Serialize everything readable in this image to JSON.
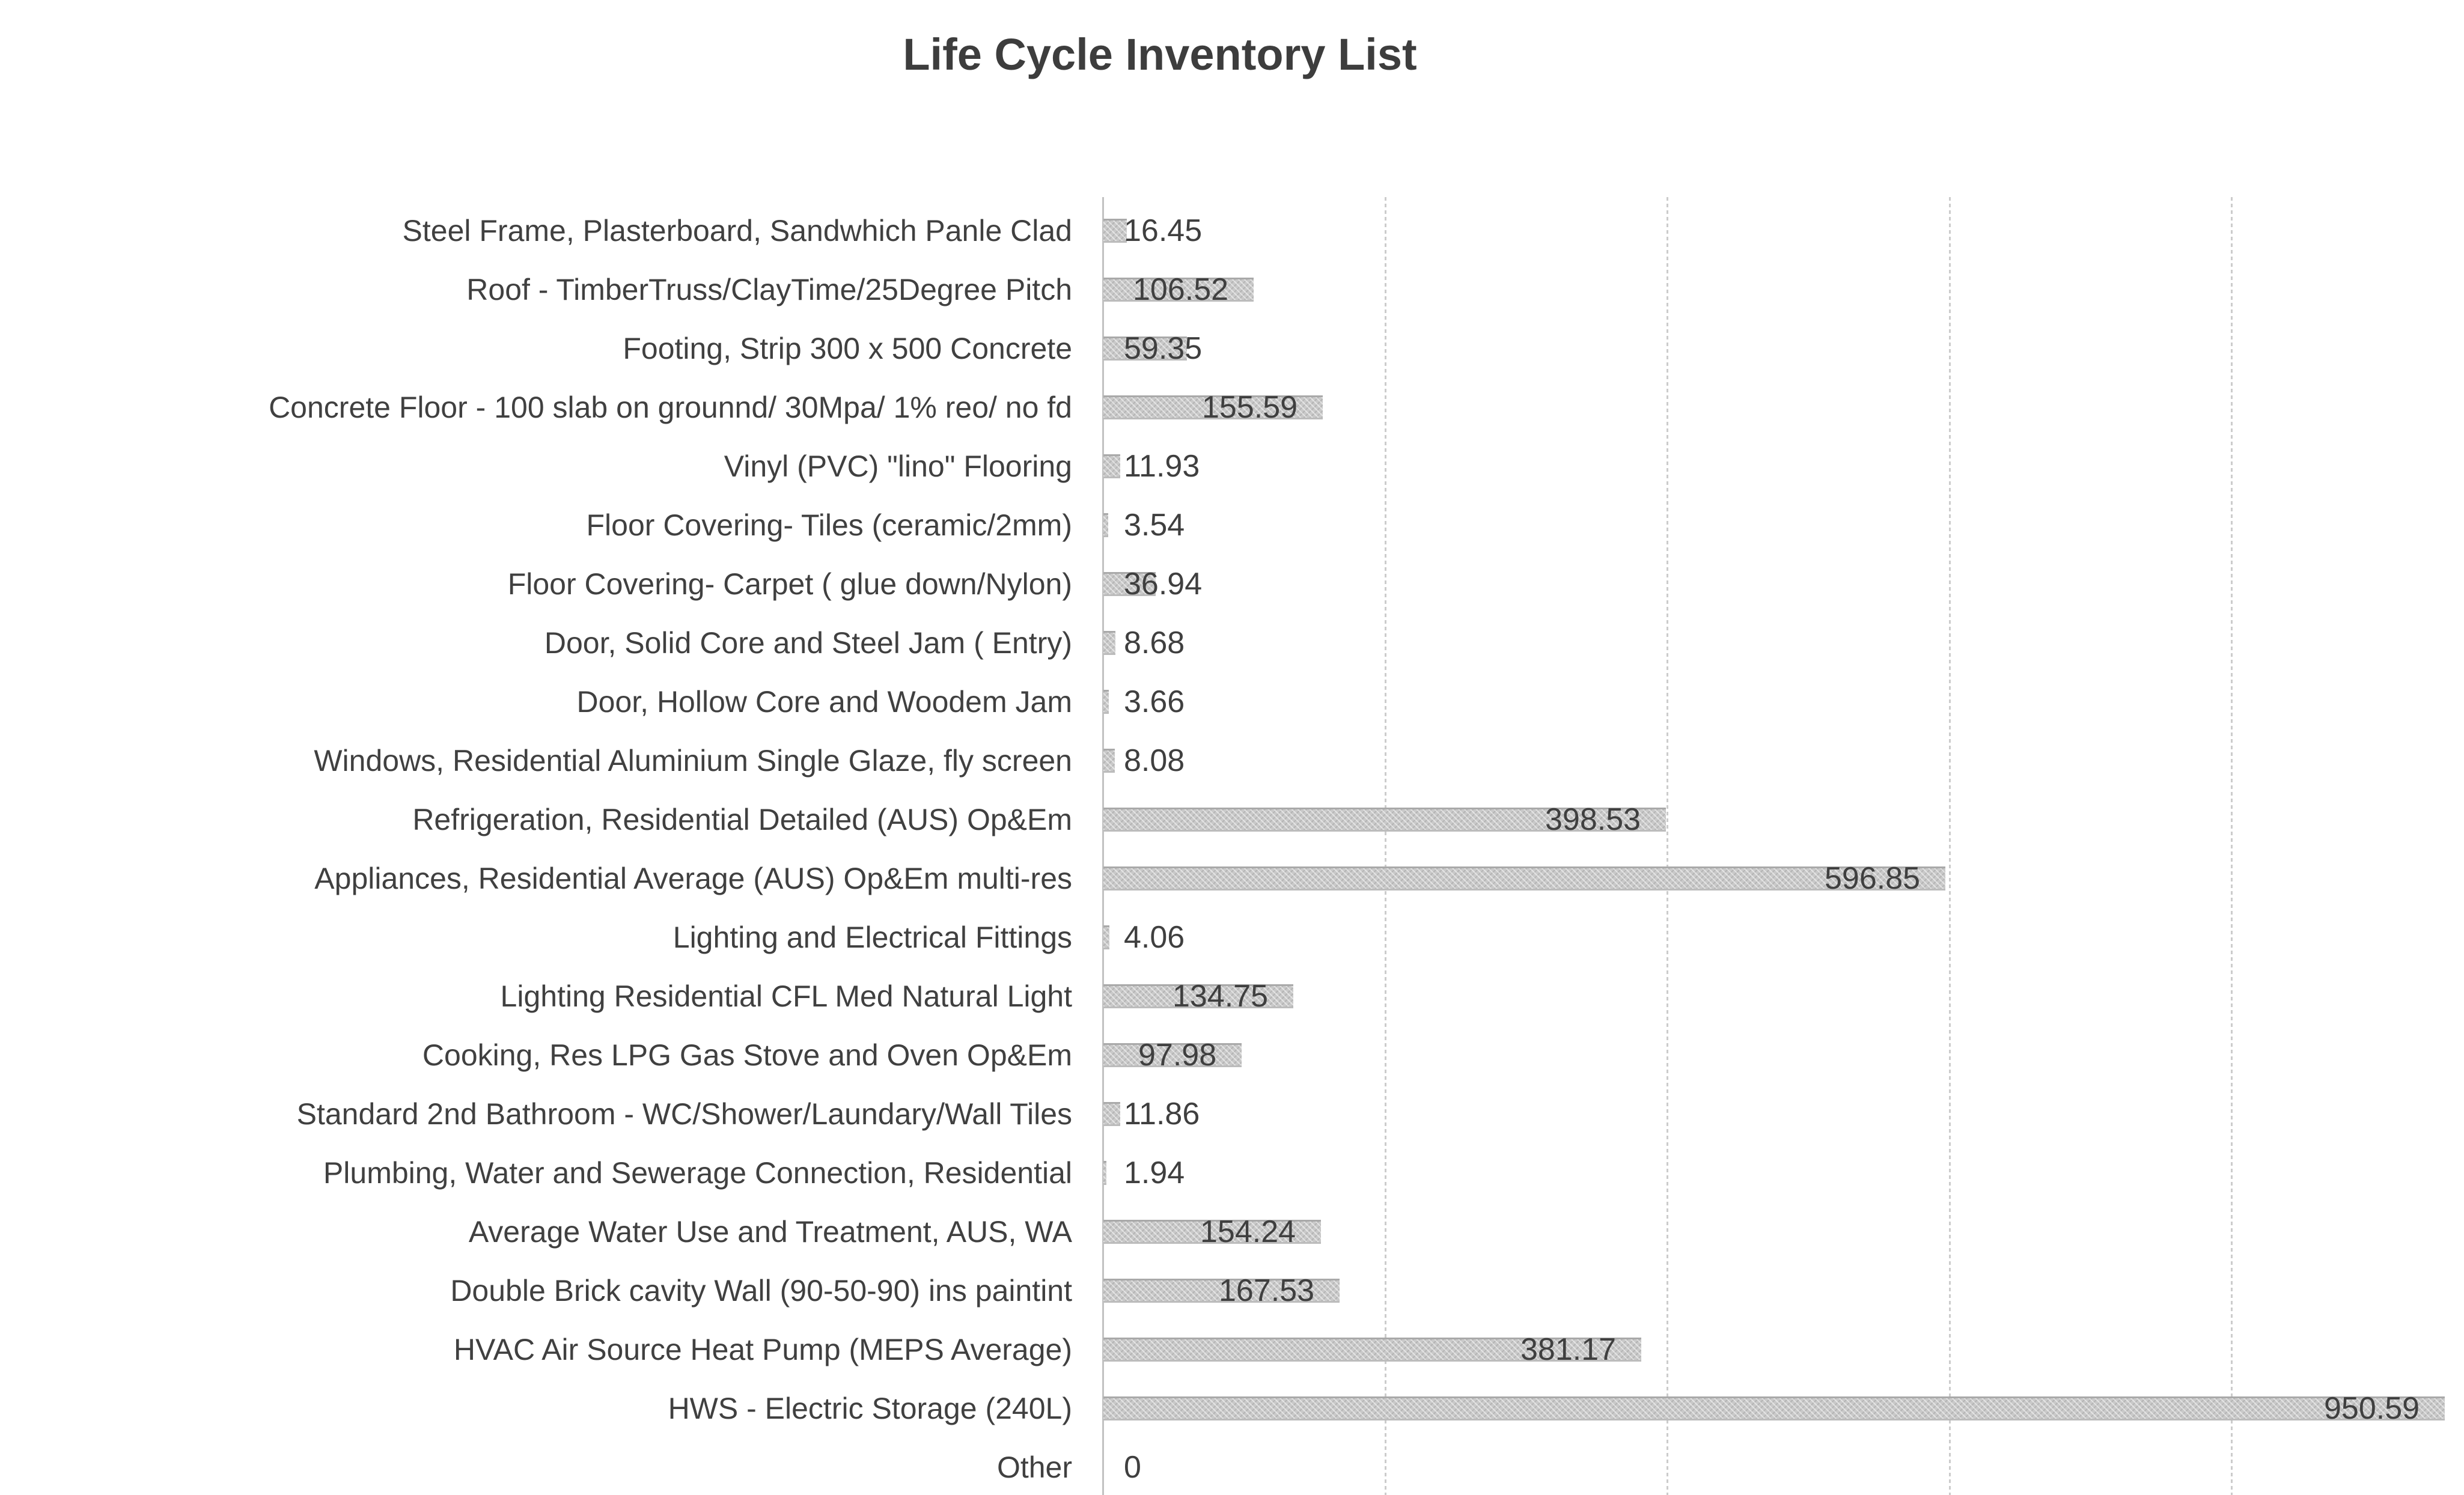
{
  "chart_data": {
    "type": "bar",
    "orientation": "horizontal",
    "title": "Life Cycle Inventory List",
    "categories": [
      "Steel Frame, Plasterboard, Sandwhich Panle Clad",
      "Roof - TimberTruss/ClayTime/25Degree Pitch",
      "Footing, Strip 300 x 500 Concrete",
      "Concrete Floor - 100 slab on grounnd/ 30Mpa/ 1% reo/ no fd",
      "Vinyl (PVC) \"lino\" Flooring",
      "Floor Covering- Tiles (ceramic/2mm)",
      "Floor Covering- Carpet ( glue down/Nylon)",
      "Door, Solid Core and Steel Jam ( Entry)",
      "Door, Hollow Core and Woodem Jam",
      "Windows, Residential Aluminium Single Glaze, fly screen",
      "Refrigeration, Residential Detailed (AUS) Op&Em",
      "Appliances, Residential Average (AUS) Op&Em multi-res",
      "Lighting and Electrical Fittings",
      "Lighting Residential CFL Med Natural Light",
      "Cooking, Res LPG Gas Stove and Oven Op&Em",
      "Standard 2nd Bathroom - WC/Shower/Laundary/Wall Tiles",
      "Plumbing, Water and Sewerage Connection, Residential",
      "Average Water Use and Treatment, AUS, WA",
      "Double Brick cavity Wall (90-50-90) ins paintint",
      "HVAC Air Source Heat Pump (MEPS Average)",
      "HWS - Electric Storage (240L)",
      "Other"
    ],
    "values": [
      16.45,
      106.52,
      59.35,
      155.59,
      11.93,
      3.54,
      36.94,
      8.68,
      3.66,
      8.08,
      398.53,
      596.85,
      4.06,
      134.75,
      97.98,
      11.86,
      1.94,
      154.24,
      167.53,
      381.17,
      950.59,
      0
    ],
    "value_labels": [
      "16.45",
      "106.52",
      "59.35",
      "155.59",
      "11.93",
      "3.54",
      "36.94",
      "8.68",
      "3.66",
      "8.08",
      "398.53",
      "596.85",
      "4.06",
      "134.75",
      "97.98",
      "11.86",
      "1.94",
      "154.24",
      "167.53",
      "381.17",
      "950.59",
      "0"
    ],
    "xlim": [
      0,
      1000
    ],
    "gridline_interval": 200,
    "grid": true,
    "legend": false,
    "xlabel": "",
    "ylabel": "",
    "colors": {
      "bar_fill": "#c9c9c9",
      "bar_edge": "#a9a9a9",
      "category_text": "#404040",
      "value_text": "#3f3f3f",
      "title_text": "#3d3d3d",
      "gridline": "#cccccc",
      "axis_line": "#c2c2c2",
      "background": "#ffffff"
    }
  }
}
